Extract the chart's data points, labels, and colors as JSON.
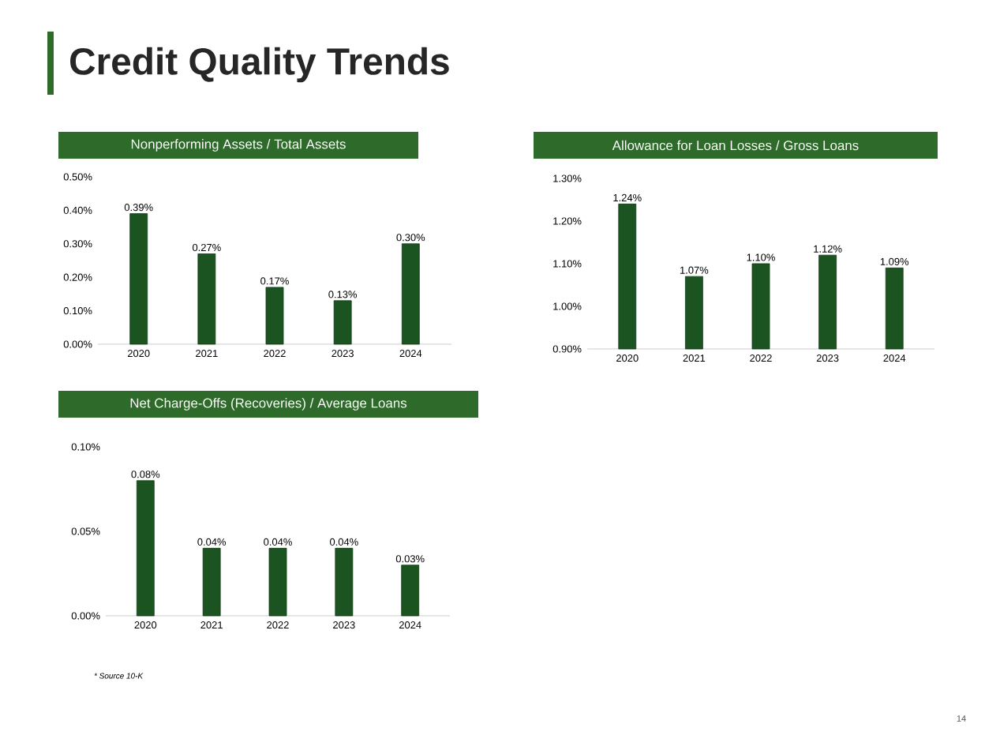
{
  "chart_data": [
    {
      "type": "bar",
      "title": "Nonperforming Assets / Total Assets",
      "categories": [
        "2020",
        "2021",
        "2022",
        "2023",
        "2024"
      ],
      "values": [
        0.39,
        0.27,
        0.17,
        0.13,
        0.3
      ],
      "value_labels": [
        "0.39%",
        "0.27%",
        "0.17%",
        "0.13%",
        "0.30%"
      ],
      "color": "#1b5420",
      "ylim": [
        0,
        0.5
      ],
      "yticks": [
        {
          "value": 0,
          "label": "0.00%"
        },
        {
          "value": 0.1,
          "label": "0.10%"
        },
        {
          "value": 0.2,
          "label": "0.20%"
        },
        {
          "value": 0.3,
          "label": "0.30%"
        },
        {
          "value": 0.4,
          "label": "0.40%"
        },
        {
          "value": 0.5,
          "label": "0.50%"
        }
      ]
    },
    {
      "type": "bar",
      "title": "Allowance for Loan Losses / Gross Loans",
      "categories": [
        "2020",
        "2021",
        "2022",
        "2023",
        "2024"
      ],
      "values": [
        1.24,
        1.07,
        1.1,
        1.12,
        1.09
      ],
      "value_labels": [
        "1.24%",
        "1.07%",
        "1.10%",
        "1.12%",
        "1.09%"
      ],
      "color": "#1b5420",
      "ylim": [
        0.9,
        1.3
      ],
      "yticks": [
        {
          "value": 0.9,
          "label": "0.90%"
        },
        {
          "value": 1.0,
          "label": "1.00%"
        },
        {
          "value": 1.1,
          "label": "1.10%"
        },
        {
          "value": 1.2,
          "label": "1.20%"
        },
        {
          "value": 1.3,
          "label": "1.30%"
        }
      ]
    },
    {
      "type": "bar",
      "title": "Net Charge-Offs (Recoveries) / Average Loans",
      "categories": [
        "2020",
        "2021",
        "2022",
        "2023",
        "2024"
      ],
      "values": [
        0.08,
        0.04,
        0.04,
        0.04,
        0.03
      ],
      "value_labels": [
        "0.08%",
        "0.04%",
        "0.04%",
        "0.04%",
        "0.03%"
      ],
      "color": "#1b5420",
      "ylim": [
        0,
        0.1
      ],
      "yticks": [
        {
          "value": 0,
          "label": "0.00%"
        },
        {
          "value": 0.05,
          "label": "0.05%"
        },
        {
          "value": 0.1,
          "label": "0.10%"
        }
      ]
    },
    {
      "type": "other",
      "title": "Credit Quality Trends",
      "annotations": [
        "* Source 10-K",
        "14"
      ]
    }
  ]
}
